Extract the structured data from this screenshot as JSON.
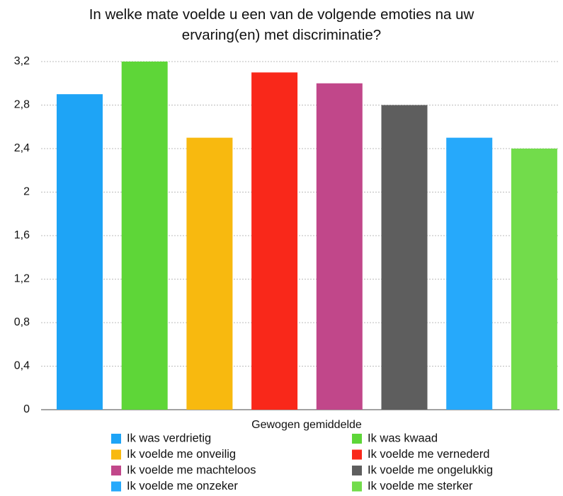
{
  "chart_data": {
    "type": "bar",
    "title": "In welke mate voelde u een van de volgende emoties na uw ervaring(en) met discriminatie?",
    "categories": [
      "Gewogen gemiddelde"
    ],
    "series": [
      {
        "name": "Ik was verdrietig",
        "color": "#1ea4f6",
        "values": [
          2.9
        ]
      },
      {
        "name": "Ik was kwaad",
        "color": "#5ed638",
        "values": [
          3.2
        ]
      },
      {
        "name": "Ik voelde me onveilig",
        "color": "#f8b90f",
        "values": [
          2.5
        ]
      },
      {
        "name": "Ik voelde me vernederd",
        "color": "#f9281a",
        "values": [
          3.1
        ]
      },
      {
        "name": "Ik voelde me machteloos",
        "color": "#c1478a",
        "values": [
          3.0
        ]
      },
      {
        "name": "Ik voelde me ongelukkig",
        "color": "#5e5e5e",
        "values": [
          2.8
        ]
      },
      {
        "name": "Ik voelde me onzeker",
        "color": "#26a9fb",
        "values": [
          2.5
        ]
      },
      {
        "name": "Ik voelde me sterker",
        "color": "#72dc4b",
        "values": [
          2.4
        ]
      }
    ],
    "ylim": [
      0,
      3.2
    ],
    "yticks": [
      0,
      {
        "value": 0.4,
        "label": "0,4"
      },
      {
        "value": 0.8,
        "label": "0,8"
      },
      {
        "value": 1.2,
        "label": "1,2"
      },
      {
        "value": 1.6,
        "label": "1,6"
      },
      2,
      {
        "value": 2.4,
        "label": "2,4"
      },
      {
        "value": 2.8,
        "label": "2,8"
      },
      {
        "value": 3.2,
        "label": "3,2"
      }
    ],
    "grid": true,
    "legend": "bottom"
  }
}
